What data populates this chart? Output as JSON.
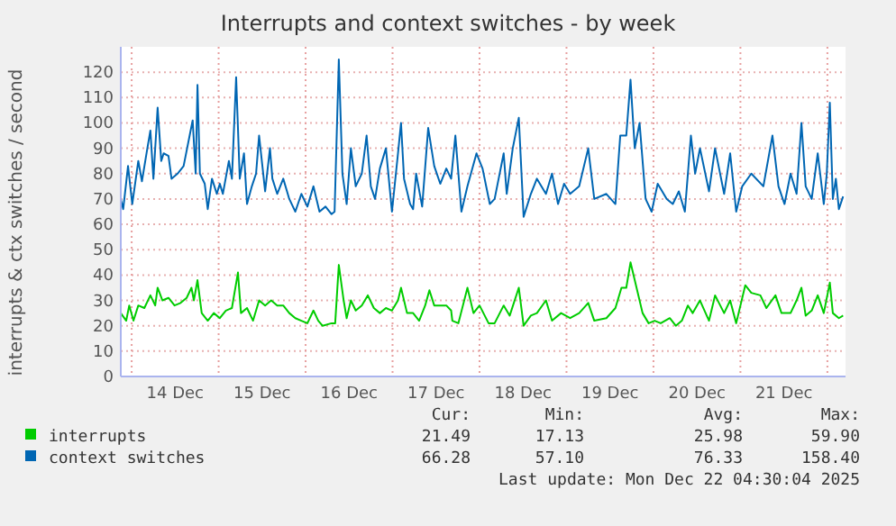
{
  "chart_data": {
    "type": "line",
    "title": "Interrupts and context switches - by week",
    "ylabel": "interrupts & ctx switches / second",
    "xlim": [
      "2025-12-13T21:00",
      "2025-12-22T05:00"
    ],
    "xticks": [
      {
        "value": "2025-12-14T00:00",
        "label": null
      },
      {
        "value": "2025-12-15T00:00",
        "label": null
      },
      {
        "value": "2025-12-16T00:00",
        "label": null
      },
      {
        "value": "2025-12-17T00:00",
        "label": null
      },
      {
        "value": "2025-12-18T00:00",
        "label": null
      },
      {
        "value": "2025-12-19T00:00",
        "label": null
      },
      {
        "value": "2025-12-20T00:00",
        "label": null
      },
      {
        "value": "2025-12-21T00:00",
        "label": null
      },
      {
        "value": "2025-12-22T00:00",
        "label": null
      },
      {
        "value": "2025-12-14T12:00",
        "label": "14 Dec"
      },
      {
        "value": "2025-12-15T12:00",
        "label": "15 Dec"
      },
      {
        "value": "2025-12-16T12:00",
        "label": "16 Dec"
      },
      {
        "value": "2025-12-17T12:00",
        "label": "17 Dec"
      },
      {
        "value": "2025-12-18T12:00",
        "label": "18 Dec"
      },
      {
        "value": "2025-12-19T12:00",
        "label": "19 Dec"
      },
      {
        "value": "2025-12-20T12:00",
        "label": "20 Dec"
      },
      {
        "value": "2025-12-21T12:00",
        "label": "21 Dec"
      }
    ],
    "ylim": [
      0,
      130
    ],
    "yticks": [
      0,
      10,
      20,
      30,
      40,
      50,
      60,
      70,
      80,
      90,
      100,
      110,
      120
    ],
    "grid": true,
    "legend": "bottom",
    "series": [
      {
        "name": "interrupts",
        "color": "#00cc00",
        "x": [
          "2025-12-13T21:00",
          "2025-12-13T22:30",
          "2025-12-13T23:20",
          "2025-12-14T00:30",
          "2025-12-14T01:50",
          "2025-12-14T03:30",
          "2025-12-14T05:10",
          "2025-12-14T06:30",
          "2025-12-14T07:10",
          "2025-12-14T08:30",
          "2025-12-14T10:10",
          "2025-12-14T11:50",
          "2025-12-14T13:30",
          "2025-12-14T15:10",
          "2025-12-14T16:30",
          "2025-12-14T17:10",
          "2025-12-14T18:10",
          "2025-12-14T19:20",
          "2025-12-14T21:00",
          "2025-12-14T22:40",
          "2025-12-15T00:20",
          "2025-12-15T02:00",
          "2025-12-15T03:40",
          "2025-12-15T05:20",
          "2025-12-15T06:10",
          "2025-12-15T07:50",
          "2025-12-15T09:30",
          "2025-12-15T11:10",
          "2025-12-15T12:50",
          "2025-12-15T14:30",
          "2025-12-15T16:10",
          "2025-12-15T17:50",
          "2025-12-15T19:30",
          "2025-12-15T21:10",
          "2025-12-15T22:50",
          "2025-12-16T00:30",
          "2025-12-16T02:10",
          "2025-12-16T03:30",
          "2025-12-16T04:40",
          "2025-12-16T07:10",
          "2025-12-16T08:10",
          "2025-12-16T09:10",
          "2025-12-16T10:30",
          "2025-12-16T11:20",
          "2025-12-16T12:30",
          "2025-12-16T13:50",
          "2025-12-16T15:30",
          "2025-12-16T17:10",
          "2025-12-16T18:50",
          "2025-12-16T20:30",
          "2025-12-16T22:10",
          "2025-12-16T23:50",
          "2025-12-17T01:30",
          "2025-12-17T02:20",
          "2025-12-17T04:00",
          "2025-12-17T05:40",
          "2025-12-17T07:20",
          "2025-12-17T09:00",
          "2025-12-17T10:10",
          "2025-12-17T11:30",
          "2025-12-17T14:50",
          "2025-12-17T16:10",
          "2025-12-17T16:30",
          "2025-12-17T18:10",
          "2025-12-17T20:40",
          "2025-12-17T22:20",
          "2025-12-18T00:00",
          "2025-12-18T02:30",
          "2025-12-18T04:10",
          "2025-12-18T06:40",
          "2025-12-18T08:20",
          "2025-12-18T10:50",
          "2025-12-18T12:10",
          "2025-12-18T14:10",
          "2025-12-18T15:50",
          "2025-12-18T18:20",
          "2025-12-18T20:00",
          "2025-12-18T22:30",
          "2025-12-19T01:00",
          "2025-12-19T03:30",
          "2025-12-19T06:00",
          "2025-12-19T07:40",
          "2025-12-19T11:00",
          "2025-12-19T13:30",
          "2025-12-19T15:10",
          "2025-12-19T16:30",
          "2025-12-19T17:40",
          "2025-12-19T19:20",
          "2025-12-19T21:00",
          "2025-12-19T22:40",
          "2025-12-20T00:20",
          "2025-12-20T02:00",
          "2025-12-20T04:30",
          "2025-12-20T06:10",
          "2025-12-20T07:50",
          "2025-12-20T09:30",
          "2025-12-20T10:50",
          "2025-12-20T12:50",
          "2025-12-20T15:20",
          "2025-12-20T17:00",
          "2025-12-20T19:30",
          "2025-12-20T21:10",
          "2025-12-20T22:50",
          "2025-12-21T01:20",
          "2025-12-21T03:00",
          "2025-12-21T05:30",
          "2025-12-21T07:10",
          "2025-12-21T09:40",
          "2025-12-21T11:20",
          "2025-12-21T13:50",
          "2025-12-21T15:30",
          "2025-12-21T16:50",
          "2025-12-21T18:00",
          "2025-12-21T19:40",
          "2025-12-21T21:20",
          "2025-12-21T23:00",
          "2025-12-22T00:40",
          "2025-12-22T01:30",
          "2025-12-22T03:10",
          "2025-12-22T04:20"
        ],
        "values": [
          25,
          22,
          28,
          22,
          28,
          27,
          32,
          28,
          35,
          30,
          31,
          28,
          29,
          31,
          35,
          30,
          38,
          25,
          22,
          25,
          23,
          26,
          27,
          41,
          25,
          27,
          22,
          30,
          28,
          30,
          28,
          28,
          25,
          23,
          22,
          21,
          26,
          22,
          20,
          21,
          21,
          44,
          30,
          23,
          30,
          26,
          28,
          32,
          27,
          25,
          27,
          26,
          30,
          35,
          25,
          25,
          22,
          28,
          34,
          28,
          28,
          26,
          22,
          21,
          35,
          25,
          28,
          21,
          21,
          28,
          24,
          35,
          20,
          24,
          25,
          30,
          22,
          25,
          23,
          25,
          29,
          22,
          23,
          27,
          35,
          35,
          45,
          35,
          25,
          21,
          22,
          21,
          23,
          20,
          22,
          28,
          25,
          30,
          22,
          32,
          25,
          30,
          21,
          36,
          33,
          32,
          27,
          32,
          25,
          25,
          30,
          35,
          24,
          26,
          32,
          25,
          37,
          25,
          23,
          24
        ]
      },
      {
        "name": "context switches",
        "color": "#0066b3",
        "x": [
          "2025-12-13T21:00",
          "2025-12-13T21:40",
          "2025-12-13T23:00",
          "2025-12-14T00:10",
          "2025-12-14T01:50",
          "2025-12-14T02:50",
          "2025-12-14T04:20",
          "2025-12-14T05:10",
          "2025-12-14T06:00",
          "2025-12-14T07:10",
          "2025-12-14T08:10",
          "2025-12-14T08:50",
          "2025-12-14T10:10",
          "2025-12-14T11:00",
          "2025-12-14T12:40",
          "2025-12-14T14:20",
          "2025-12-14T16:00",
          "2025-12-14T16:50",
          "2025-12-14T17:40",
          "2025-12-14T18:10",
          "2025-12-14T18:50",
          "2025-12-14T20:10",
          "2025-12-14T21:00",
          "2025-12-14T22:10",
          "2025-12-14T23:30",
          "2025-12-15T00:20",
          "2025-12-15T01:10",
          "2025-12-15T02:50",
          "2025-12-15T03:40",
          "2025-12-15T04:50",
          "2025-12-15T05:50",
          "2025-12-15T07:00",
          "2025-12-15T07:50",
          "2025-12-15T09:10",
          "2025-12-15T10:20",
          "2025-12-15T11:10",
          "2025-12-15T12:50",
          "2025-12-15T14:10",
          "2025-12-15T14:50",
          "2025-12-15T16:10",
          "2025-12-15T17:50",
          "2025-12-15T19:30",
          "2025-12-15T21:10",
          "2025-12-15T22:50",
          "2025-12-16T00:30",
          "2025-12-16T02:10",
          "2025-12-16T03:00",
          "2025-12-16T03:50",
          "2025-12-16T05:30",
          "2025-12-16T07:10",
          "2025-12-16T08:00",
          "2025-12-16T09:10",
          "2025-12-16T10:10",
          "2025-12-16T11:20",
          "2025-12-16T12:30",
          "2025-12-16T13:50",
          "2025-12-16T15:30",
          "2025-12-16T16:50",
          "2025-12-16T18:00",
          "2025-12-16T19:10",
          "2025-12-16T20:30",
          "2025-12-16T22:10",
          "2025-12-16T23:50",
          "2025-12-17T01:30",
          "2025-12-17T02:20",
          "2025-12-17T03:10",
          "2025-12-17T04:50",
          "2025-12-17T05:40",
          "2025-12-17T06:30",
          "2025-12-17T08:10",
          "2025-12-17T09:50",
          "2025-12-17T11:30",
          "2025-12-17T13:10",
          "2025-12-17T14:50",
          "2025-12-17T16:10",
          "2025-12-17T17:20",
          "2025-12-17T19:00",
          "2025-12-17T20:40",
          "2025-12-17T23:10",
          "2025-12-18T00:50",
          "2025-12-18T02:50",
          "2025-12-18T04:10",
          "2025-12-18T06:40",
          "2025-12-18T07:30",
          "2025-12-18T09:10",
          "2025-12-18T10:50",
          "2025-12-18T12:10",
          "2025-12-18T14:10",
          "2025-12-18T15:50",
          "2025-12-18T18:20",
          "2025-12-18T20:00",
          "2025-12-18T21:40",
          "2025-12-18T23:20",
          "2025-12-19T01:00",
          "2025-12-19T03:30",
          "2025-12-19T06:00",
          "2025-12-19T07:40",
          "2025-12-19T11:00",
          "2025-12-19T13:30",
          "2025-12-19T14:50",
          "2025-12-19T16:30",
          "2025-12-19T17:40",
          "2025-12-19T18:50",
          "2025-12-19T20:10",
          "2025-12-19T21:50",
          "2025-12-19T23:30",
          "2025-12-20T01:10",
          "2025-12-20T03:40",
          "2025-12-20T05:20",
          "2025-12-20T07:00",
          "2025-12-20T08:40",
          "2025-12-20T10:20",
          "2025-12-20T11:30",
          "2025-12-20T12:50",
          "2025-12-20T15:20",
          "2025-12-20T17:00",
          "2025-12-20T19:30",
          "2025-12-20T21:10",
          "2025-12-20T22:50",
          "2025-12-21T00:30",
          "2025-12-21T03:00",
          "2025-12-21T06:20",
          "2025-12-21T08:50",
          "2025-12-21T10:30",
          "2025-12-21T12:10",
          "2025-12-21T13:50",
          "2025-12-21T15:30",
          "2025-12-21T16:50",
          "2025-12-21T18:00",
          "2025-12-21T19:40",
          "2025-12-21T21:20",
          "2025-12-21T23:00",
          "2025-12-21T23:50",
          "2025-12-22T00:40",
          "2025-12-22T01:30",
          "2025-12-22T02:20",
          "2025-12-22T03:10",
          "2025-12-22T04:20"
        ],
        "values": [
          70,
          66,
          83,
          68,
          85,
          77,
          90,
          97,
          78,
          106,
          85,
          88,
          87,
          78,
          80,
          83,
          95,
          101,
          80,
          115,
          80,
          76,
          66,
          78,
          72,
          76,
          72,
          85,
          78,
          118,
          78,
          88,
          68,
          75,
          80,
          95,
          73,
          90,
          78,
          72,
          78,
          70,
          65,
          72,
          67,
          75,
          70,
          65,
          67,
          64,
          65,
          125,
          80,
          68,
          90,
          75,
          80,
          95,
          75,
          70,
          82,
          90,
          65,
          88,
          100,
          78,
          68,
          66,
          80,
          67,
          98,
          83,
          76,
          82,
          78,
          95,
          65,
          75,
          88,
          82,
          68,
          70,
          88,
          72,
          90,
          102,
          63,
          72,
          78,
          72,
          80,
          68,
          76,
          72,
          75,
          90,
          70,
          72,
          68,
          95,
          95,
          117,
          90,
          100,
          70,
          65,
          76,
          70,
          68,
          73,
          65,
          95,
          80,
          90,
          73,
          90,
          72,
          88,
          65,
          75,
          80,
          75,
          95,
          75,
          68,
          80,
          72,
          100,
          75,
          70,
          88,
          68,
          80,
          108,
          70,
          78,
          66,
          71
        ]
      }
    ],
    "annotations": [
      "Cur:",
      "Min:",
      "Avg:",
      "Max:",
      "21.49",
      "17.13",
      "25.98",
      "59.90",
      "66.28",
      "57.10",
      "76.33",
      "158.40",
      "Last update: Mon Dec 22 04:30:04 2025"
    ]
  }
}
